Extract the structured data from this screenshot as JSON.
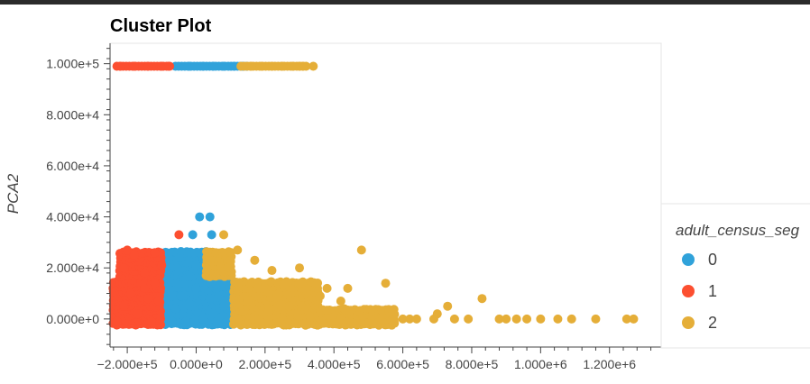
{
  "chart_data": {
    "type": "scatter",
    "title": "Cluster Plot",
    "xlabel": "",
    "ylabel": "PCA2",
    "xlim": [
      -250000,
      1350000
    ],
    "ylim": [
      -11000,
      108000
    ],
    "x_ticks": [
      -200000,
      0,
      200000,
      400000,
      600000,
      800000,
      1000000,
      1200000
    ],
    "x_tick_labels": [
      "−2.000e+5",
      "0.000e+0",
      "2.000e+5",
      "4.000e+5",
      "6.000e+5",
      "8.000e+5",
      "1.000e+6",
      "1.200e+6"
    ],
    "y_ticks": [
      0,
      20000,
      40000,
      60000,
      80000,
      100000
    ],
    "y_tick_labels": [
      "0.000e+0",
      "2.000e+4",
      "4.000e+4",
      "6.000e+4",
      "8.000e+4",
      "1.000e+5"
    ],
    "grid": false,
    "legend": {
      "title": "adult_census_seg",
      "placement": "right",
      "entries": [
        "0",
        "1",
        "2"
      ]
    },
    "series": [
      {
        "name": "0",
        "color": "#30a2da",
        "bands": [
          {
            "x": [
              -90000,
              110000
            ],
            "y": [
              -2000,
              14500
            ]
          },
          {
            "x": [
              -90000,
              30000
            ],
            "y": [
              17000,
              27500
            ]
          }
        ],
        "top_band": [
          -60000,
          150000,
          99000
        ],
        "points": [
          [
            -70000,
            -1000
          ],
          [
            -60000,
            4000
          ],
          [
            -45000,
            9000
          ],
          [
            -30000,
            -1000
          ],
          [
            -20000,
            6000
          ],
          [
            0,
            12000
          ],
          [
            20000,
            0
          ],
          [
            40000,
            8000
          ],
          [
            60000,
            -1000
          ],
          [
            80000,
            5000
          ],
          [
            100000,
            10000
          ],
          [
            -80000,
            24000
          ],
          [
            -50000,
            19000
          ],
          [
            -20000,
            26000
          ],
          [
            0,
            21000
          ],
          [
            20000,
            24000
          ],
          [
            -10000,
            33000
          ],
          [
            10000,
            40000
          ],
          [
            40000,
            40000
          ],
          [
            45000,
            33000
          ],
          [
            20000,
            99000
          ],
          [
            50000,
            99000
          ],
          [
            80000,
            99000
          ],
          [
            -20000,
            99000
          ],
          [
            110000,
            99000
          ],
          [
            135000,
            99000
          ]
        ]
      },
      {
        "name": "1",
        "color": "#fc4f30",
        "bands": [
          {
            "x": [
              -240000,
              -100000
            ],
            "y": [
              -2000,
              14500
            ]
          },
          {
            "x": [
              -220000,
              -100000
            ],
            "y": [
              17000,
              27500
            ]
          }
        ],
        "top_band": [
          -230000,
          -70000,
          99000
        ],
        "points": [
          [
            -230000,
            -1000
          ],
          [
            -210000,
            5000
          ],
          [
            -190000,
            10000
          ],
          [
            -170000,
            3000
          ],
          [
            -150000,
            12000
          ],
          [
            -130000,
            -1000
          ],
          [
            -110000,
            7000
          ],
          [
            -210000,
            20000
          ],
          [
            -180000,
            25000
          ],
          [
            -150000,
            18000
          ],
          [
            -120000,
            26000
          ],
          [
            -100000,
            21000
          ],
          [
            -170000,
            2000
          ],
          [
            -140000,
            8000
          ],
          [
            -115000,
            13000
          ],
          [
            -200000,
            27000
          ],
          [
            -120000,
            14000
          ],
          [
            -50000,
            33000
          ],
          [
            -220000,
            99000
          ],
          [
            -180000,
            99000
          ],
          [
            -140000,
            99000
          ],
          [
            -100000,
            99000
          ],
          [
            -80000,
            99000
          ]
        ]
      },
      {
        "name": "2",
        "color": "#e5ae38",
        "bands": [
          {
            "x": [
              110000,
              360000
            ],
            "y": [
              -2000,
              14500
            ]
          },
          {
            "x": [
              360000,
              580000
            ],
            "y": [
              -2000,
              3500
            ]
          },
          {
            "x": [
              30000,
              110000
            ],
            "y": [
              17000,
              27500
            ]
          }
        ],
        "top_band": [
          130000,
          320000,
          99000
        ],
        "points": [
          [
            120000,
            0
          ],
          [
            150000,
            7000
          ],
          [
            180000,
            12000
          ],
          [
            210000,
            3000
          ],
          [
            240000,
            10000
          ],
          [
            270000,
            5000
          ],
          [
            300000,
            14000
          ],
          [
            330000,
            1000
          ],
          [
            360000,
            9000
          ],
          [
            380000,
            12000
          ],
          [
            420000,
            7000
          ],
          [
            440000,
            12000
          ],
          [
            430000,
            4000
          ],
          [
            480000,
            27000
          ],
          [
            550000,
            14000
          ],
          [
            560000,
            3000
          ],
          [
            570000,
            2000
          ],
          [
            600000,
            0
          ],
          [
            620000,
            0
          ],
          [
            640000,
            0
          ],
          [
            690000,
            0
          ],
          [
            700000,
            2000
          ],
          [
            730000,
            5000
          ],
          [
            750000,
            0
          ],
          [
            790000,
            0
          ],
          [
            830000,
            8000
          ],
          [
            880000,
            0
          ],
          [
            900000,
            0
          ],
          [
            930000,
            0
          ],
          [
            960000,
            0
          ],
          [
            1000000,
            0
          ],
          [
            1050000,
            0
          ],
          [
            1090000,
            0
          ],
          [
            1160000,
            0
          ],
          [
            1250000,
            0
          ],
          [
            1270000,
            0
          ],
          [
            80000,
            33000
          ],
          [
            120000,
            27000
          ],
          [
            170000,
            23000
          ],
          [
            220000,
            19000
          ],
          [
            260000,
            14000
          ],
          [
            300000,
            20000
          ],
          [
            160000,
            99000
          ],
          [
            190000,
            99000
          ],
          [
            220000,
            99000
          ],
          [
            250000,
            99000
          ],
          [
            280000,
            99000
          ],
          [
            300000,
            99000
          ],
          [
            310000,
            99000
          ],
          [
            340000,
            99000
          ]
        ]
      }
    ]
  }
}
